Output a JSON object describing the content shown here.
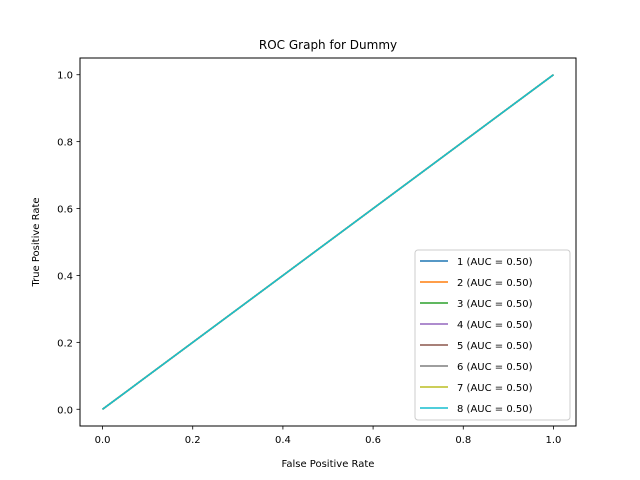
{
  "chart_data": {
    "type": "line",
    "title": "ROC Graph for Dummy",
    "xlabel": "False Positive Rate",
    "ylabel": "True Positive Rate",
    "xlim": [
      -0.05,
      1.05
    ],
    "ylim": [
      -0.05,
      1.05
    ],
    "xticks": [
      "0.0",
      "0.2",
      "0.4",
      "0.6",
      "0.8",
      "1.0"
    ],
    "yticks": [
      "0.0",
      "0.2",
      "0.4",
      "0.6",
      "0.8",
      "1.0"
    ],
    "grid": false,
    "legend_position": "lower-right",
    "series": [
      {
        "name": "1 (AUC = 0.50)",
        "color": "#1f77b4",
        "x": [
          0,
          1
        ],
        "y": [
          0,
          1
        ]
      },
      {
        "name": "2 (AUC = 0.50)",
        "color": "#ff7f0e",
        "x": [
          0,
          1
        ],
        "y": [
          0,
          1
        ]
      },
      {
        "name": "3 (AUC = 0.50)",
        "color": "#2ca02c",
        "x": [
          0,
          1
        ],
        "y": [
          0,
          1
        ]
      },
      {
        "name": "4 (AUC = 0.50)",
        "color": "#9467bd",
        "x": [
          0,
          1
        ],
        "y": [
          0,
          1
        ]
      },
      {
        "name": "5 (AUC = 0.50)",
        "color": "#8c564b",
        "x": [
          0,
          1
        ],
        "y": [
          0,
          1
        ]
      },
      {
        "name": "6 (AUC = 0.50)",
        "color": "#7f7f7f",
        "x": [
          0,
          1
        ],
        "y": [
          0,
          1
        ]
      },
      {
        "name": "7 (AUC = 0.50)",
        "color": "#bcbd22",
        "x": [
          0,
          1
        ],
        "y": [
          0,
          1
        ]
      },
      {
        "name": "8 (AUC = 0.50)",
        "color": "#17becf",
        "x": [
          0,
          1
        ],
        "y": [
          0,
          1
        ]
      }
    ]
  }
}
